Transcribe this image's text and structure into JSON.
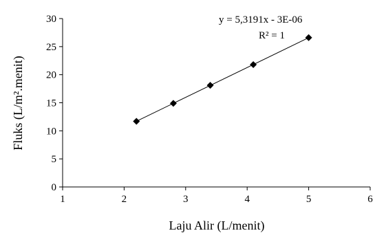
{
  "chart_data": {
    "type": "scatter",
    "title": "",
    "xlabel": "Laju Alir (L/menit)",
    "ylabel": "Fluks (L/m².menit)",
    "xlim": [
      1,
      6
    ],
    "ylim": [
      0,
      30
    ],
    "x_ticks": [
      "1",
      "2",
      "3",
      "4",
      "5",
      "6"
    ],
    "y_ticks": [
      "0",
      "5",
      "10",
      "15",
      "20",
      "25",
      "30"
    ],
    "grid": false,
    "legend": "none",
    "series": [
      {
        "x": [
          2.2,
          2.8,
          3.4,
          4.1,
          5.0
        ],
        "y": [
          11.7,
          14.9,
          18.1,
          21.8,
          26.6
        ],
        "marker": "diamond",
        "color": "#000000"
      }
    ],
    "trendline": {
      "type": "linear",
      "slope": 5.3191,
      "intercept": -3e-06,
      "equation_text": "y = 5,3191x - 3E-06",
      "r2_text": "R² = 1",
      "color": "#000000"
    }
  }
}
